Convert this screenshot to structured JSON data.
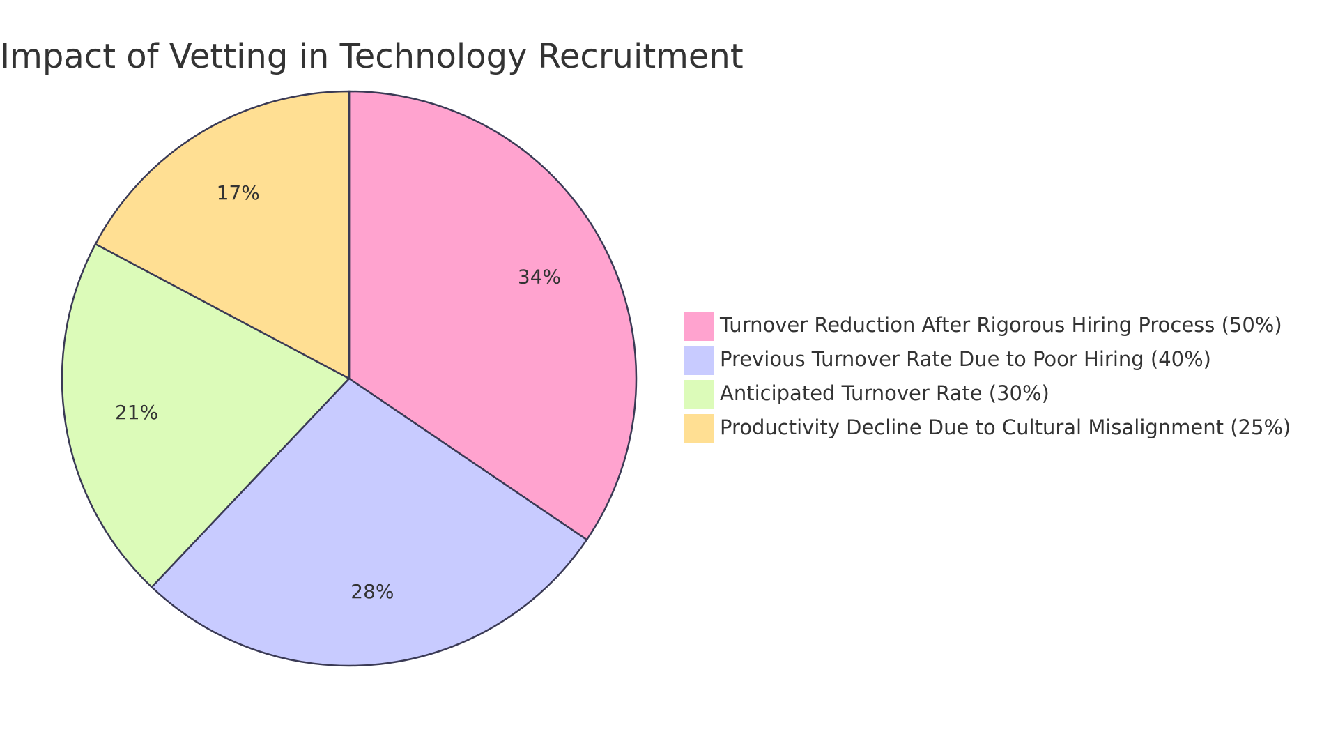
{
  "chart_data": {
    "type": "pie",
    "title": "Impact of Vetting in Technology Recruitment",
    "slices": [
      {
        "name": "Turnover Reduction After Rigorous Hiring Process (50%)",
        "value": 50,
        "label": "34%",
        "color": "#FFA3CF"
      },
      {
        "name": "Previous Turnover Rate Due to Poor Hiring (40%)",
        "value": 40,
        "label": "28%",
        "color": "#C8CBFF"
      },
      {
        "name": "Anticipated Turnover Rate (30%)",
        "value": 30,
        "label": "21%",
        "color": "#DCFBB9"
      },
      {
        "name": "Productivity Decline Due to Cultural Misalignment (25%)",
        "value": 25,
        "label": "17%",
        "color": "#FFDF93"
      }
    ],
    "legend_position": "right",
    "stroke_color": "#3A3A55"
  }
}
